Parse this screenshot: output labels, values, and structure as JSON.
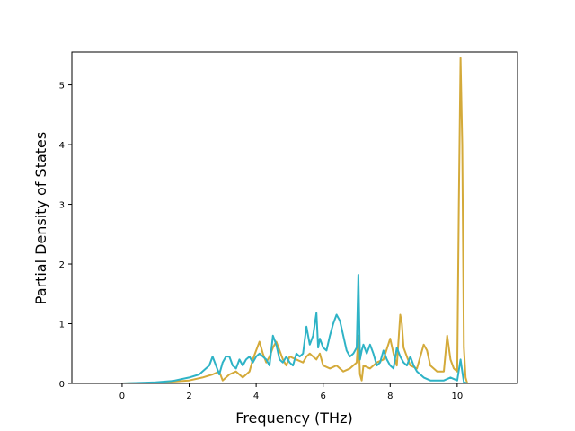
{
  "chart_data": {
    "type": "line",
    "xlabel": "Frequency (THz)",
    "ylabel": "Partial Density of States",
    "xlim": [
      -1.5,
      11.8
    ],
    "ylim": [
      0,
      5.55
    ],
    "xticks": [
      0,
      2,
      4,
      6,
      8,
      10
    ],
    "yticks": [
      0,
      1,
      2,
      3,
      4,
      5
    ],
    "grid": false,
    "legend": "none",
    "colors": {
      "gold": "#d4aa3a",
      "teal": "#2eb3c6",
      "red": "#d62728"
    },
    "series": [
      {
        "color": "#d4aa3a",
        "x": [
          -1.0,
          0.0,
          1.0,
          1.5,
          2.0,
          2.4,
          2.7,
          2.9,
          3.0,
          3.2,
          3.4,
          3.6,
          3.8,
          3.9,
          4.0,
          4.1,
          4.2,
          4.3,
          4.4,
          4.5,
          4.6,
          4.7,
          4.8,
          4.9,
          5.0,
          5.2,
          5.4,
          5.5,
          5.6,
          5.7,
          5.8,
          5.9,
          6.0,
          6.2,
          6.4,
          6.6,
          6.8,
          7.0,
          7.05,
          7.1,
          7.15,
          7.2,
          7.4,
          7.6,
          7.8,
          8.0,
          8.1,
          8.2,
          8.3,
          8.35,
          8.4,
          8.5,
          8.6,
          8.8,
          9.0,
          9.1,
          9.2,
          9.4,
          9.6,
          9.7,
          9.8,
          9.9,
          10.0,
          10.05,
          10.1,
          10.15,
          10.2,
          10.25,
          10.3,
          10.4,
          11.3
        ],
        "values": [
          0.0,
          0.0,
          0.01,
          0.03,
          0.05,
          0.1,
          0.15,
          0.2,
          0.05,
          0.15,
          0.2,
          0.1,
          0.2,
          0.4,
          0.55,
          0.7,
          0.5,
          0.35,
          0.45,
          0.6,
          0.7,
          0.55,
          0.4,
          0.3,
          0.45,
          0.4,
          0.35,
          0.45,
          0.5,
          0.45,
          0.4,
          0.5,
          0.3,
          0.25,
          0.3,
          0.2,
          0.25,
          0.35,
          0.8,
          0.15,
          0.05,
          0.3,
          0.25,
          0.35,
          0.4,
          0.75,
          0.5,
          0.3,
          1.15,
          1.0,
          0.6,
          0.45,
          0.3,
          0.25,
          0.65,
          0.55,
          0.3,
          0.2,
          0.2,
          0.8,
          0.4,
          0.25,
          0.2,
          3.0,
          5.45,
          4.0,
          0.6,
          0.1,
          0.0,
          0.0,
          0.0
        ]
      },
      {
        "color": "#2eb3c6",
        "x": [
          -1.0,
          0.0,
          1.0,
          1.5,
          2.0,
          2.3,
          2.6,
          2.7,
          2.8,
          2.9,
          3.0,
          3.1,
          3.2,
          3.3,
          3.4,
          3.5,
          3.6,
          3.7,
          3.8,
          3.9,
          4.0,
          4.1,
          4.2,
          4.3,
          4.4,
          4.5,
          4.6,
          4.7,
          4.8,
          4.9,
          5.0,
          5.1,
          5.2,
          5.3,
          5.4,
          5.5,
          5.6,
          5.7,
          5.8,
          5.85,
          5.9,
          6.0,
          6.1,
          6.2,
          6.3,
          6.4,
          6.5,
          6.6,
          6.7,
          6.8,
          6.9,
          7.0,
          7.05,
          7.1,
          7.15,
          7.2,
          7.3,
          7.4,
          7.5,
          7.6,
          7.7,
          7.8,
          7.9,
          8.0,
          8.1,
          8.2,
          8.3,
          8.4,
          8.5,
          8.6,
          8.7,
          8.8,
          8.9,
          9.0,
          9.2,
          9.4,
          9.6,
          9.8,
          10.0,
          10.1,
          10.15,
          10.2,
          10.3,
          11.3
        ],
        "values": [
          0.0,
          0.0,
          0.02,
          0.04,
          0.1,
          0.15,
          0.3,
          0.45,
          0.3,
          0.15,
          0.35,
          0.45,
          0.45,
          0.3,
          0.25,
          0.4,
          0.3,
          0.4,
          0.45,
          0.35,
          0.45,
          0.5,
          0.45,
          0.4,
          0.3,
          0.8,
          0.65,
          0.4,
          0.35,
          0.45,
          0.35,
          0.3,
          0.5,
          0.45,
          0.5,
          0.95,
          0.65,
          0.8,
          1.18,
          0.6,
          0.75,
          0.6,
          0.55,
          0.8,
          1.0,
          1.15,
          1.05,
          0.8,
          0.55,
          0.45,
          0.5,
          0.6,
          1.82,
          0.4,
          0.55,
          0.65,
          0.5,
          0.65,
          0.5,
          0.3,
          0.35,
          0.55,
          0.4,
          0.3,
          0.25,
          0.6,
          0.45,
          0.35,
          0.3,
          0.45,
          0.3,
          0.2,
          0.15,
          0.1,
          0.05,
          0.05,
          0.05,
          0.1,
          0.05,
          0.4,
          0.2,
          0.02,
          0.0,
          0.0
        ]
      }
    ]
  }
}
